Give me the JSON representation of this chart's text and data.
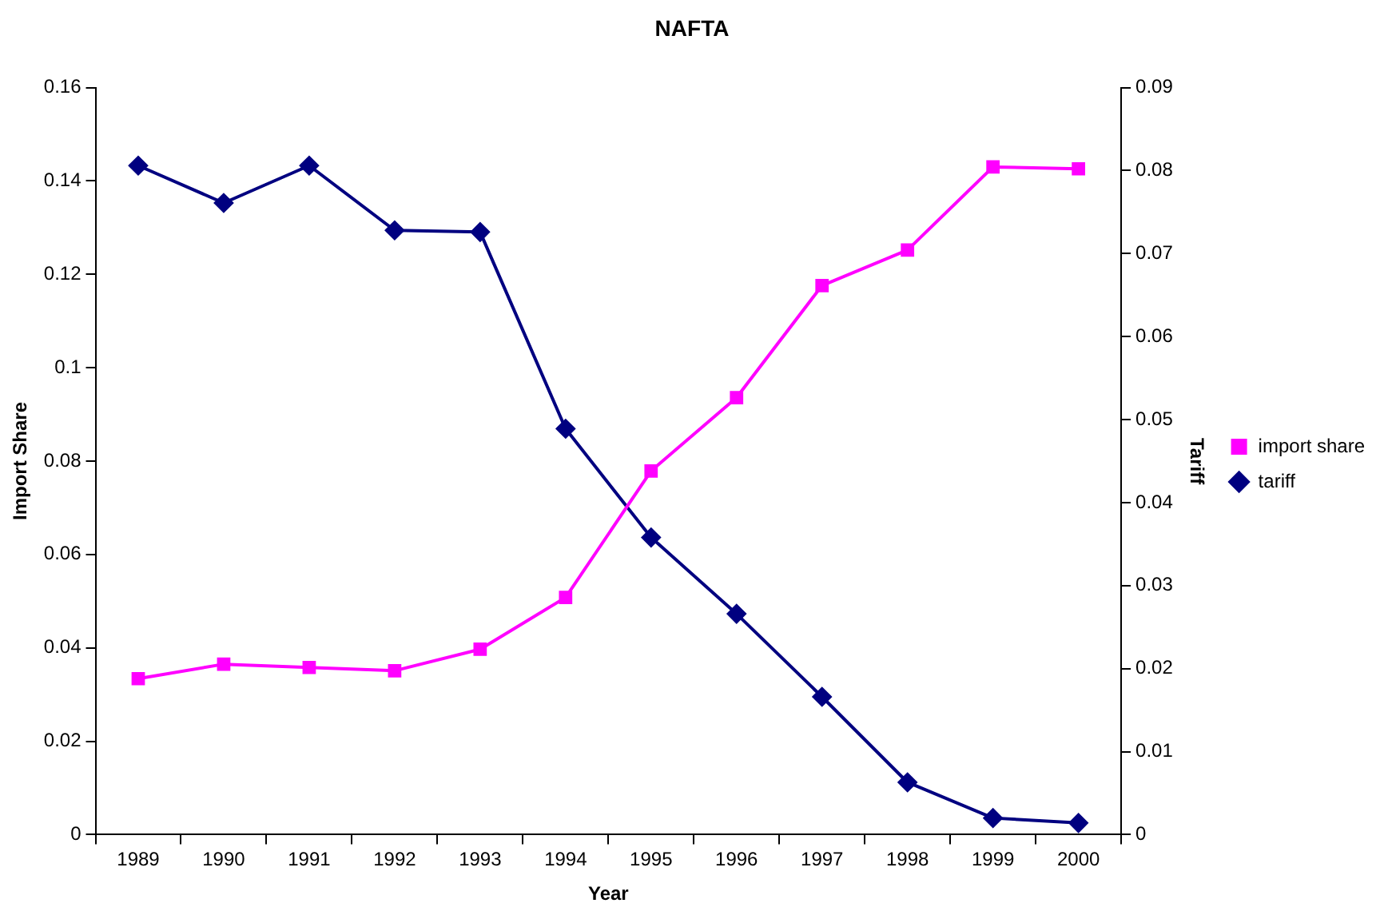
{
  "chart_data": {
    "type": "line",
    "title": "NAFTA",
    "xlabel": "Year",
    "ylabel": "Import Share",
    "y2label": "Tariff",
    "categories": [
      "1989",
      "1990",
      "1991",
      "1992",
      "1993",
      "1994",
      "1995",
      "1996",
      "1997",
      "1998",
      "1999",
      "2000"
    ],
    "series": [
      {
        "name": "import share",
        "color": "#ff00ff",
        "marker": "square",
        "values": [
          0.0334,
          0.0365,
          0.0358,
          0.0351,
          0.0397,
          0.0508,
          0.0779,
          0.0936,
          0.1176,
          0.1252,
          0.143,
          0.1426
        ]
      },
      {
        "name": "tariff",
        "color": "#000080",
        "marker": "diamond",
        "axis": "y2",
        "values": [
          0.0806,
          0.0761,
          0.0806,
          0.0728,
          0.0726,
          0.0489,
          0.0358,
          0.0266,
          0.0166,
          0.0063,
          0.002,
          0.0014
        ]
      }
    ],
    "ylim": [
      0,
      0.16
    ],
    "yticks": [
      0,
      0.02,
      0.04,
      0.06,
      0.08,
      0.1,
      0.12,
      0.14,
      0.16
    ],
    "y2lim": [
      0,
      0.09
    ],
    "y2ticks": [
      0,
      0.01,
      0.02,
      0.03,
      0.04,
      0.05,
      0.06,
      0.07,
      0.08,
      0.09
    ],
    "grid": false,
    "legend": "right",
    "line_style": "solid"
  }
}
